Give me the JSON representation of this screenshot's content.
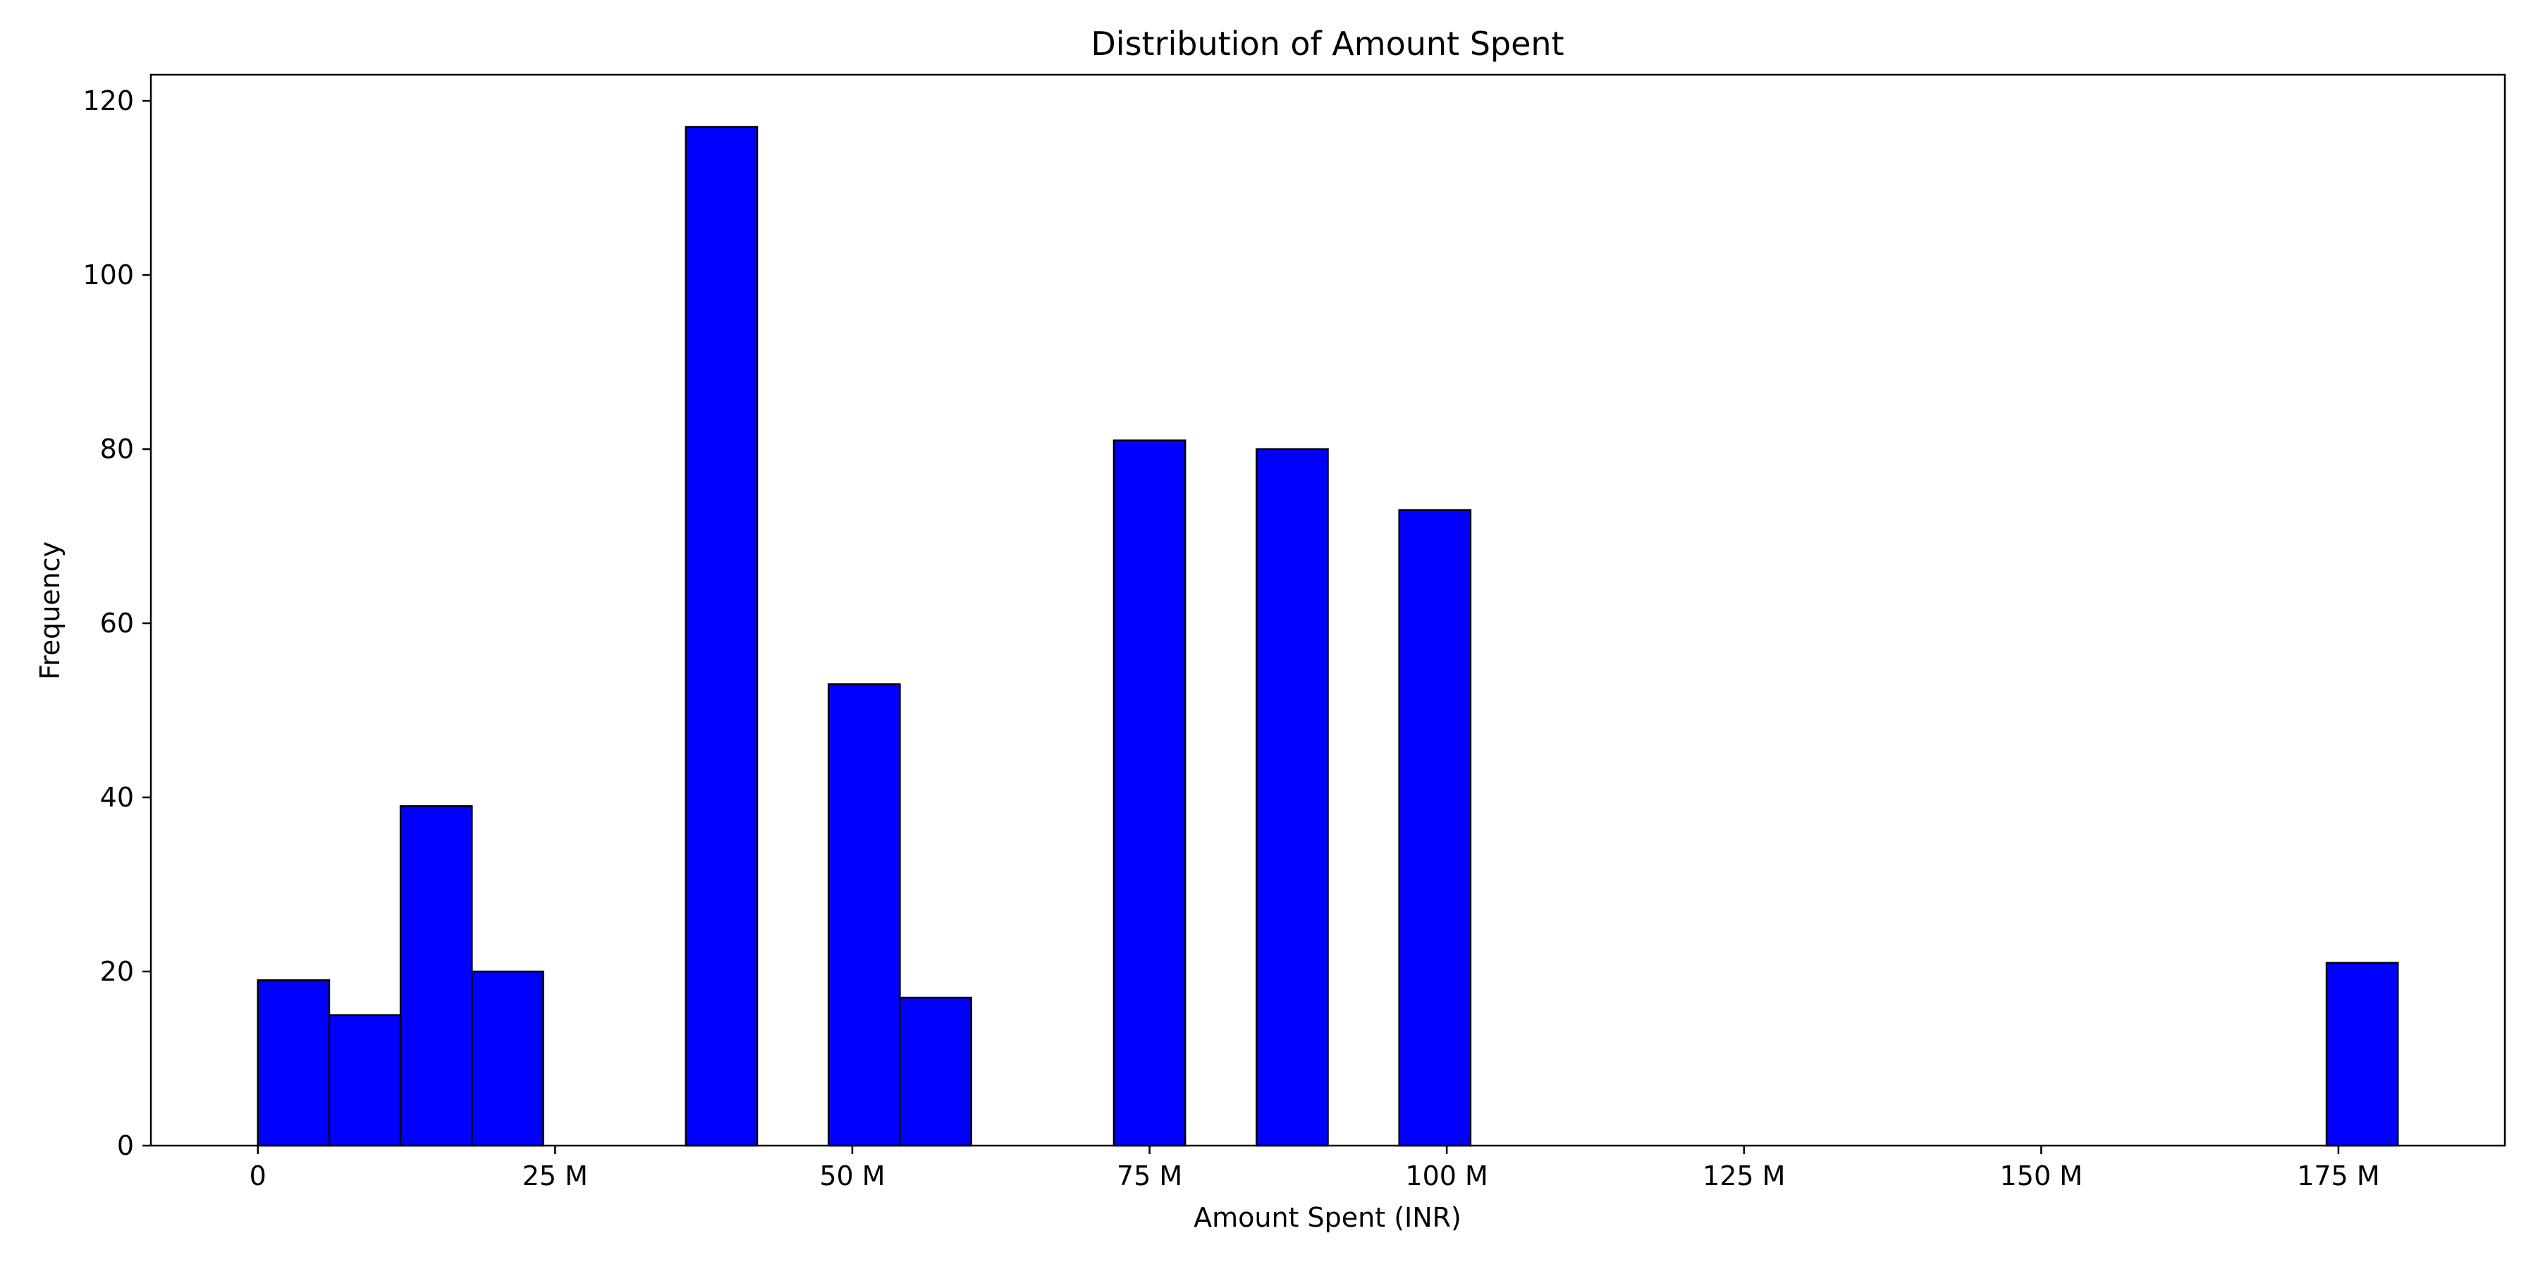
{
  "chart_data": {
    "type": "bar",
    "title": "Distribution of Amount Spent",
    "xlabel": "Amount Spent (INR)",
    "ylabel": "Frequency",
    "bar_color": "#0000ff",
    "edge_color": "#000000",
    "grid": false,
    "legend": "none",
    "bin_width": 6,
    "bins": [
      {
        "x0": 0,
        "x1": 6,
        "value": 19
      },
      {
        "x0": 6,
        "x1": 12,
        "value": 15
      },
      {
        "x0": 12,
        "x1": 18,
        "value": 39
      },
      {
        "x0": 18,
        "x1": 24,
        "value": 20
      },
      {
        "x0": 24,
        "x1": 30,
        "value": 0
      },
      {
        "x0": 30,
        "x1": 36,
        "value": 0
      },
      {
        "x0": 36,
        "x1": 42,
        "value": 117
      },
      {
        "x0": 42,
        "x1": 48,
        "value": 0
      },
      {
        "x0": 48,
        "x1": 54,
        "value": 53
      },
      {
        "x0": 54,
        "x1": 60,
        "value": 17
      },
      {
        "x0": 60,
        "x1": 66,
        "value": 0
      },
      {
        "x0": 66,
        "x1": 72,
        "value": 0
      },
      {
        "x0": 72,
        "x1": 78,
        "value": 81
      },
      {
        "x0": 78,
        "x1": 84,
        "value": 0
      },
      {
        "x0": 84,
        "x1": 90,
        "value": 80
      },
      {
        "x0": 90,
        "x1": 96,
        "value": 0
      },
      {
        "x0": 96,
        "x1": 102,
        "value": 73
      },
      {
        "x0": 102,
        "x1": 108,
        "value": 0
      },
      {
        "x0": 108,
        "x1": 114,
        "value": 0
      },
      {
        "x0": 114,
        "x1": 120,
        "value": 0
      },
      {
        "x0": 120,
        "x1": 126,
        "value": 0
      },
      {
        "x0": 126,
        "x1": 132,
        "value": 0
      },
      {
        "x0": 132,
        "x1": 138,
        "value": 0
      },
      {
        "x0": 138,
        "x1": 144,
        "value": 0
      },
      {
        "x0": 144,
        "x1": 150,
        "value": 0
      },
      {
        "x0": 150,
        "x1": 156,
        "value": 0
      },
      {
        "x0": 156,
        "x1": 162,
        "value": 0
      },
      {
        "x0": 162,
        "x1": 168,
        "value": 0
      },
      {
        "x0": 168,
        "x1": 174,
        "value": 0
      },
      {
        "x0": 174,
        "x1": 180,
        "value": 21
      }
    ],
    "xlim": [
      -9,
      189
    ],
    "ylim": [
      0,
      123
    ],
    "x_ticks": [
      {
        "value": 0,
        "label": "0"
      },
      {
        "value": 25,
        "label": "25 M"
      },
      {
        "value": 50,
        "label": "50 M"
      },
      {
        "value": 75,
        "label": "75 M"
      },
      {
        "value": 100,
        "label": "100 M"
      },
      {
        "value": 125,
        "label": "125 M"
      },
      {
        "value": 150,
        "label": "150 M"
      },
      {
        "value": 175,
        "label": "175 M"
      }
    ],
    "y_ticks": [
      {
        "value": 0,
        "label": "0"
      },
      {
        "value": 20,
        "label": "20"
      },
      {
        "value": 40,
        "label": "40"
      },
      {
        "value": 60,
        "label": "60"
      },
      {
        "value": 80,
        "label": "80"
      },
      {
        "value": 100,
        "label": "100"
      },
      {
        "value": 120,
        "label": "120"
      }
    ]
  }
}
